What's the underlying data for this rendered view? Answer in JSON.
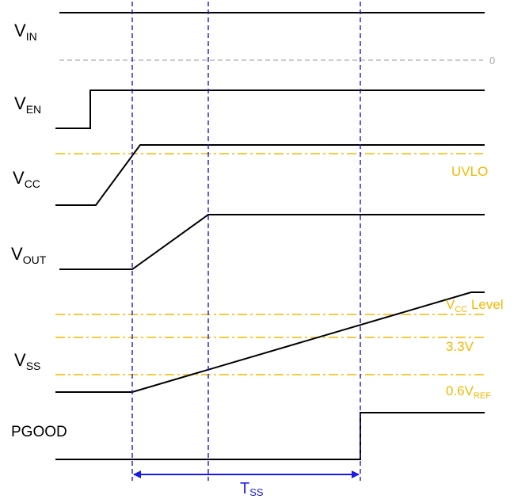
{
  "signals": {
    "vin": {
      "main": "V",
      "sub": "IN"
    },
    "ven": {
      "main": "V",
      "sub": "EN"
    },
    "vcc": {
      "main": "V",
      "sub": "CC"
    },
    "vout": {
      "main": "V",
      "sub": "OUT"
    },
    "vss": {
      "main": "V",
      "sub": "SS"
    },
    "pgood": "PGOOD"
  },
  "levels": {
    "zero": "0",
    "uvlo": "UVLO",
    "vcc_level": {
      "main": "V",
      "sub": "CC",
      "suffix": " Level"
    },
    "v33": "3.3V",
    "vref": {
      "main": "0.6V",
      "sub": "REF"
    }
  },
  "timing": {
    "main": "T",
    "sub": "SS"
  },
  "colors": {
    "waveform": "#000000",
    "level_line": "#f5b800",
    "marker_line": "#1a1ae6",
    "zero_line": "#aaaaaa"
  }
}
